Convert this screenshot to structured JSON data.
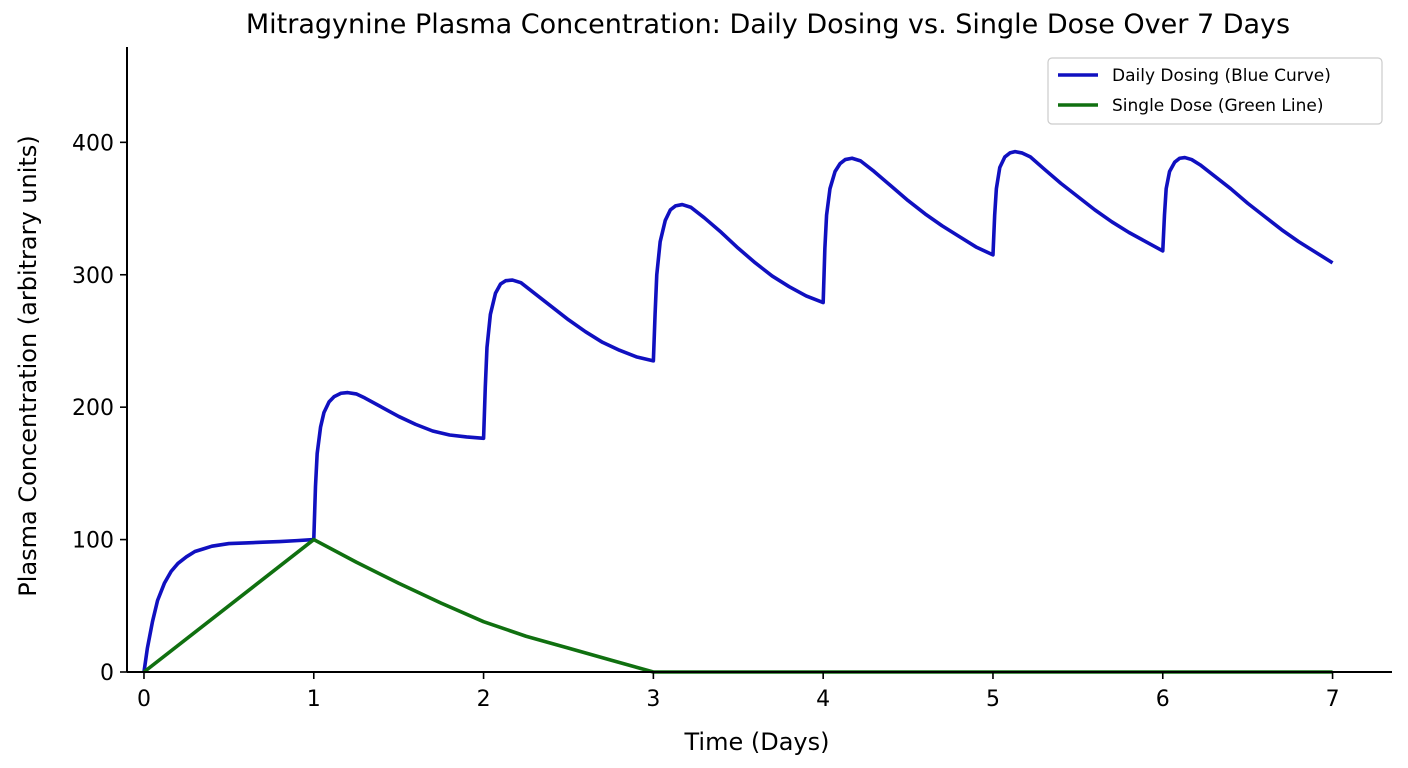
{
  "chart_data": {
    "type": "line",
    "title": "Mitragynine Plasma Concentration: Daily Dosing vs. Single Dose Over 7 Days",
    "xlabel": "Time (Days)",
    "ylabel": "Plasma Concentration (arbitrary units)",
    "xlim": [
      -0.1,
      7.35
    ],
    "ylim": [
      0,
      472
    ],
    "x_ticks": [
      0,
      1,
      2,
      3,
      4,
      5,
      6,
      7
    ],
    "y_ticks": [
      0,
      100,
      200,
      300,
      400
    ],
    "grid": false,
    "legend_position": "top-right",
    "series": [
      {
        "name": "Daily Dosing (Blue Curve)",
        "color": "#1010c0",
        "x": [
          0,
          0.02,
          0.05,
          0.08,
          0.12,
          0.16,
          0.2,
          0.25,
          0.3,
          0.35,
          0.4,
          0.5,
          0.6,
          0.7,
          0.8,
          0.9,
          1.0,
          1.01,
          1.02,
          1.04,
          1.06,
          1.09,
          1.12,
          1.16,
          1.2,
          1.25,
          1.3,
          1.4,
          1.5,
          1.6,
          1.7,
          1.8,
          1.9,
          2.0,
          2.01,
          2.02,
          2.04,
          2.07,
          2.1,
          2.13,
          2.17,
          2.22,
          2.3,
          2.4,
          2.5,
          2.6,
          2.7,
          2.8,
          2.9,
          3.0,
          3.01,
          3.02,
          3.04,
          3.07,
          3.1,
          3.13,
          3.17,
          3.22,
          3.3,
          3.4,
          3.5,
          3.6,
          3.7,
          3.8,
          3.9,
          4.0,
          4.01,
          4.02,
          4.04,
          4.07,
          4.1,
          4.13,
          4.17,
          4.22,
          4.3,
          4.4,
          4.5,
          4.6,
          4.7,
          4.8,
          4.9,
          5.0,
          5.01,
          5.02,
          5.04,
          5.07,
          5.1,
          5.13,
          5.17,
          5.22,
          5.3,
          5.4,
          5.5,
          5.6,
          5.7,
          5.8,
          5.9,
          6.0,
          6.01,
          6.02,
          6.04,
          6.07,
          6.1,
          6.13,
          6.17,
          6.22,
          6.3,
          6.4,
          6.5,
          6.6,
          6.7,
          6.8,
          6.9,
          7.0
        ],
        "values": [
          0,
          18,
          38,
          54,
          67,
          76,
          82,
          87,
          91,
          93,
          95,
          97,
          97.5,
          98,
          98.5,
          99.2,
          100,
          140,
          165,
          185,
          196,
          204,
          208,
          210.5,
          211,
          210,
          207,
          200,
          193,
          187,
          182,
          179,
          177.5,
          176.5,
          215,
          245,
          270,
          286,
          293,
          295.5,
          296,
          294,
          286,
          276,
          266,
          257,
          249,
          243,
          238,
          235,
          270,
          300,
          325,
          341,
          349,
          352,
          353,
          351,
          343,
          332,
          320,
          309,
          299,
          291,
          284,
          279,
          320,
          345,
          365,
          378,
          384,
          387,
          388,
          386,
          378,
          367,
          356,
          346,
          337,
          329,
          321,
          315,
          345,
          365,
          381,
          389,
          392,
          393,
          392,
          389,
          380,
          369,
          359,
          349,
          340,
          332,
          325,
          318,
          345,
          365,
          378,
          385,
          388,
          388.5,
          387,
          383,
          375,
          365,
          354,
          344,
          334,
          325,
          317,
          309
        ]
      },
      {
        "name": "Single Dose (Green Line)",
        "color": "#107010",
        "x": [
          0,
          1,
          1.25,
          1.5,
          1.75,
          2,
          2.25,
          2.5,
          2.75,
          3,
          3.5,
          4,
          5,
          6,
          7
        ],
        "values": [
          0,
          100,
          83,
          67,
          52,
          38,
          27,
          18,
          9,
          0,
          0,
          0,
          0,
          0,
          0
        ]
      }
    ]
  }
}
